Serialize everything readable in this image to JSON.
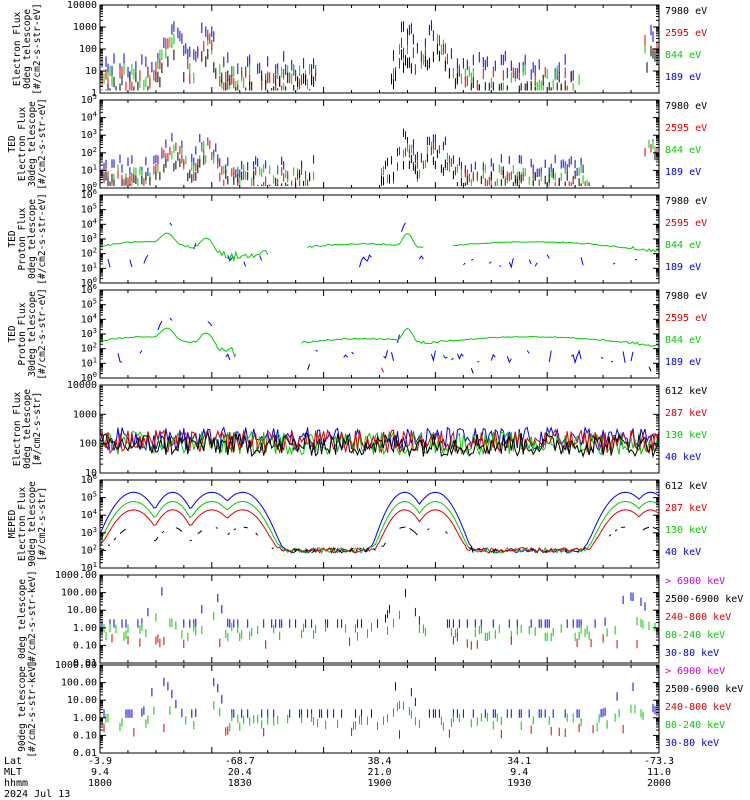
{
  "chart_data": [
    {
      "type": "line",
      "ylabel": [
        "Electron Flux",
        "0deg telescope",
        "[#/cm2-s-str-eV]"
      ],
      "yscale": "log",
      "ylim": [
        1,
        10000
      ],
      "yticks": [
        {
          "v": 10000,
          "l": "10000"
        },
        {
          "v": 1000,
          "l": "1000"
        },
        {
          "v": 100,
          "l": "100"
        },
        {
          "v": 10,
          "l": "10"
        },
        {
          "v": 1,
          "l": "1"
        }
      ],
      "legend": [
        {
          "label": "7980 eV",
          "color": "#000000"
        },
        {
          "label": "2595 eV",
          "color": "#dd0000"
        },
        {
          "label": "844 eV",
          "color": "#00cc00"
        },
        {
          "label": "189 eV",
          "color": "#0000ee"
        }
      ],
      "legend_placement": "right",
      "style": "ted_e0"
    },
    {
      "type": "line",
      "ylabel": [
        "TED",
        "Electron Flux",
        "30deg telescope",
        "[#/cm2-s-str-eV]"
      ],
      "yscale": "log",
      "ylim": [
        1,
        100000
      ],
      "yticks": [
        {
          "v": 100000,
          "l": "10^5"
        },
        {
          "v": 10000,
          "l": "10^4"
        },
        {
          "v": 1000,
          "l": "10^3"
        },
        {
          "v": 100,
          "l": "10^2"
        },
        {
          "v": 10,
          "l": "10^1"
        },
        {
          "v": 1,
          "l": "10^0"
        }
      ],
      "legend": [
        {
          "label": "7980 eV",
          "color": "#000000"
        },
        {
          "label": "2595 eV",
          "color": "#dd0000"
        },
        {
          "label": "844 eV",
          "color": "#00cc00"
        },
        {
          "label": "189 eV",
          "color": "#0000ee"
        }
      ],
      "legend_placement": "right",
      "style": "ted_e30"
    },
    {
      "type": "line",
      "ylabel": [
        "TED",
        "Proton Flux",
        "0deg telescope",
        "[#/cm2-s-str-eV]"
      ],
      "yscale": "log",
      "ylim": [
        1,
        1000000
      ],
      "yticks": [
        {
          "v": 1000000,
          "l": "10^6"
        },
        {
          "v": 100000,
          "l": "10^5"
        },
        {
          "v": 10000,
          "l": "10^4"
        },
        {
          "v": 1000,
          "l": "10^3"
        },
        {
          "v": 100,
          "l": "10^2"
        },
        {
          "v": 10,
          "l": "10^1"
        },
        {
          "v": 1,
          "l": "10^0"
        }
      ],
      "legend": [
        {
          "label": "7980 eV",
          "color": "#000000"
        },
        {
          "label": "2595 eV",
          "color": "#dd0000"
        },
        {
          "label": "844 eV",
          "color": "#00cc00"
        },
        {
          "label": "189 eV",
          "color": "#0000ee"
        }
      ],
      "legend_placement": "right",
      "style": "ted_p0"
    },
    {
      "type": "line",
      "ylabel": [
        "TED",
        "Proton Flux",
        "30deg telescope",
        "[#/cm2-s-str-eV]"
      ],
      "yscale": "log",
      "ylim": [
        1,
        1000000
      ],
      "yticks": [
        {
          "v": 1000000,
          "l": "10^6"
        },
        {
          "v": 100000,
          "l": "10^5"
        },
        {
          "v": 10000,
          "l": "10^4"
        },
        {
          "v": 1000,
          "l": "10^3"
        },
        {
          "v": 100,
          "l": "10^2"
        },
        {
          "v": 10,
          "l": "10^1"
        },
        {
          "v": 1,
          "l": "10^0"
        }
      ],
      "legend": [
        {
          "label": "7980 eV",
          "color": "#000000"
        },
        {
          "label": "2595 eV",
          "color": "#dd0000"
        },
        {
          "label": "844 eV",
          "color": "#00cc00"
        },
        {
          "label": "189 eV",
          "color": "#0000ee"
        }
      ],
      "legend_placement": "right",
      "style": "ted_p30"
    },
    {
      "type": "line",
      "ylabel": [
        "Electron Flux",
        "0deg telescope",
        "[#/cm2-s-str]"
      ],
      "yscale": "log",
      "ylim": [
        10,
        10000
      ],
      "yticks": [
        {
          "v": 10000,
          "l": "10000"
        },
        {
          "v": 1000,
          "l": "1000"
        },
        {
          "v": 100,
          "l": "100"
        },
        {
          "v": 10,
          "l": "10"
        }
      ],
      "legend": [
        {
          "label": "612 keV",
          "color": "#000000"
        },
        {
          "label": "287 keV",
          "color": "#dd0000"
        },
        {
          "label": "130 keV",
          "color": "#00cc00"
        },
        {
          "label": "40 keV",
          "color": "#0000ee"
        }
      ],
      "legend_placement": "right",
      "style": "mep_e0"
    },
    {
      "type": "line",
      "ylabel": [
        "MEPED",
        "Electron Flux",
        "90deg telescope",
        "[#/cm2-s-str]"
      ],
      "yscale": "log",
      "ylim": [
        10,
        1000000
      ],
      "yticks": [
        {
          "v": 1000000,
          "l": "10^6"
        },
        {
          "v": 100000,
          "l": "10^5"
        },
        {
          "v": 10000,
          "l": "10^4"
        },
        {
          "v": 1000,
          "l": "10^3"
        },
        {
          "v": 100,
          "l": "10^2"
        },
        {
          "v": 10,
          "l": "10^1"
        }
      ],
      "legend": [
        {
          "label": "612 keV",
          "color": "#000000"
        },
        {
          "label": "287 keV",
          "color": "#dd0000"
        },
        {
          "label": "130 keV",
          "color": "#00cc00"
        },
        {
          "label": "40 keV",
          "color": "#0000ee"
        }
      ],
      "legend_placement": "right",
      "style": "mep_e90"
    },
    {
      "type": "line",
      "ylabel": [
        "0deg telescope",
        "[#/cm2-s-str-keV]"
      ],
      "yscale": "log",
      "ylim": [
        0.01,
        1000
      ],
      "yticks": [
        {
          "v": 1000,
          "l": "1000.00"
        },
        {
          "v": 100,
          "l": "100.00"
        },
        {
          "v": 10,
          "l": "10.00"
        },
        {
          "v": 1,
          "l": "1.00"
        },
        {
          "v": 0.1,
          "l": "0.10"
        },
        {
          "v": 0.01,
          "l": "0.01"
        }
      ],
      "legend": [
        {
          "label": "> 6900 keV",
          "color": "#cc00cc"
        },
        {
          "label": "2500-6900 keV",
          "color": "#000000"
        },
        {
          "label": "240-800 keV",
          "color": "#dd0000"
        },
        {
          "label": "80-240 keV",
          "color": "#00cc00"
        },
        {
          "label": "30-80 keV",
          "color": "#0000ee"
        }
      ],
      "legend_placement": "right",
      "style": "mep_p0"
    },
    {
      "type": "line",
      "ylabel": [
        "90deg telescope",
        "[#/cm2-s-str-keV]"
      ],
      "yscale": "log",
      "ylim": [
        0.01,
        1000
      ],
      "yticks": [
        {
          "v": 1000,
          "l": "1000.00"
        },
        {
          "v": 100,
          "l": "100.00"
        },
        {
          "v": 10,
          "l": "10.00"
        },
        {
          "v": 1,
          "l": "1.00"
        },
        {
          "v": 0.1,
          "l": "0.10"
        },
        {
          "v": 0.01,
          "l": "0.01"
        }
      ],
      "legend": [
        {
          "label": "> 6900 keV",
          "color": "#cc00cc"
        },
        {
          "label": "2500-6900 keV",
          "color": "#000000"
        },
        {
          "label": "240-800 keV",
          "color": "#dd0000"
        },
        {
          "label": "80-240 keV",
          "color": "#00cc00"
        },
        {
          "label": "30-80 keV",
          "color": "#0000ee"
        }
      ],
      "legend_placement": "right",
      "style": "mep_p90"
    }
  ],
  "time_axis": {
    "row_labels": [
      "Lat",
      "MLT",
      "hhmm"
    ],
    "date": "2024 Jul 13",
    "ticks": [
      {
        "lat": "-3.9",
        "mlt": "9.4",
        "hhmm": "1800"
      },
      {
        "lat": "-68.7",
        "mlt": "20.4",
        "hhmm": "1830"
      },
      {
        "lat": "38.4",
        "mlt": "21.0",
        "hhmm": "1900"
      },
      {
        "lat": "34.1",
        "mlt": "9.4",
        "hhmm": "1930"
      },
      {
        "lat": "-73.3",
        "mlt": "11.0",
        "hhmm": "2000"
      }
    ]
  },
  "colors": {
    "axis": "#000000",
    "black": "#000000",
    "red": "#dd0000",
    "green": "#00cc00",
    "blue": "#0000ee",
    "magenta": "#cc00cc"
  }
}
